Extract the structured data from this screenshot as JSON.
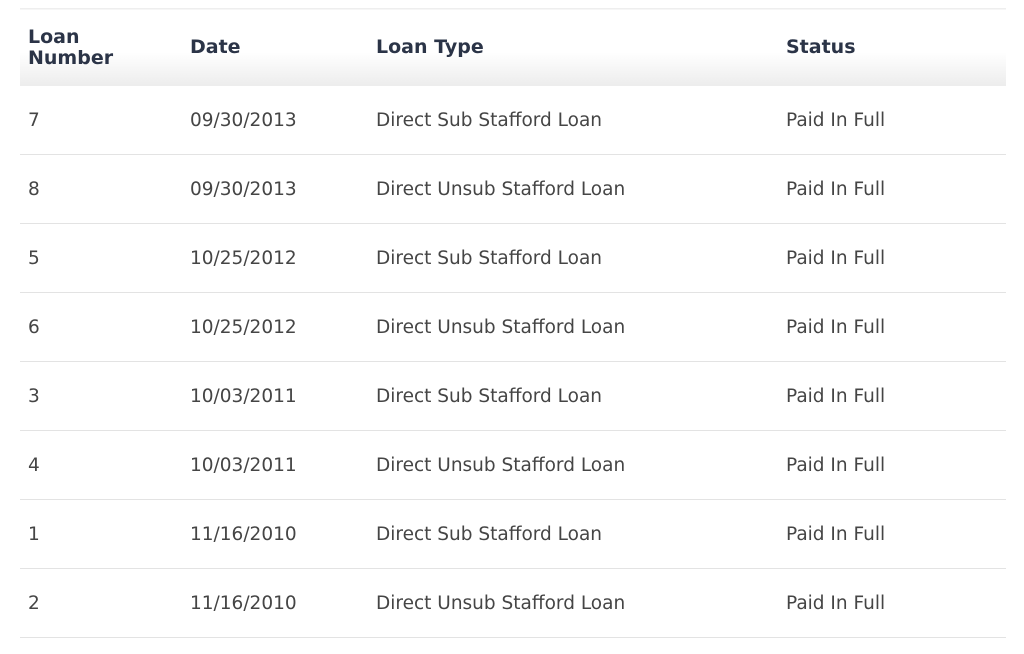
{
  "table": {
    "header": [
      "Loan Number",
      "Date",
      "Loan Type",
      "Status"
    ],
    "rows": [
      [
        "7",
        "09/30/2013",
        "Direct Sub Stafford Loan",
        "Paid In Full"
      ],
      [
        "8",
        "09/30/2013",
        "Direct Unsub Stafford Loan",
        "Paid In Full"
      ],
      [
        "5",
        "10/25/2012",
        "Direct Sub Stafford Loan",
        "Paid In Full"
      ],
      [
        "6",
        "10/25/2012",
        "Direct Unsub Stafford Loan",
        "Paid In Full"
      ],
      [
        "3",
        "10/03/2011",
        "Direct Sub Stafford Loan",
        "Paid In Full"
      ],
      [
        "4",
        "10/03/2011",
        "Direct Unsub Stafford Loan",
        "Paid In Full"
      ],
      [
        "1",
        "11/16/2010",
        "Direct Sub Stafford Loan",
        "Paid In Full"
      ],
      [
        "2",
        "11/16/2010",
        "Direct Unsub Stafford Loan",
        "Paid In Full"
      ]
    ]
  }
}
